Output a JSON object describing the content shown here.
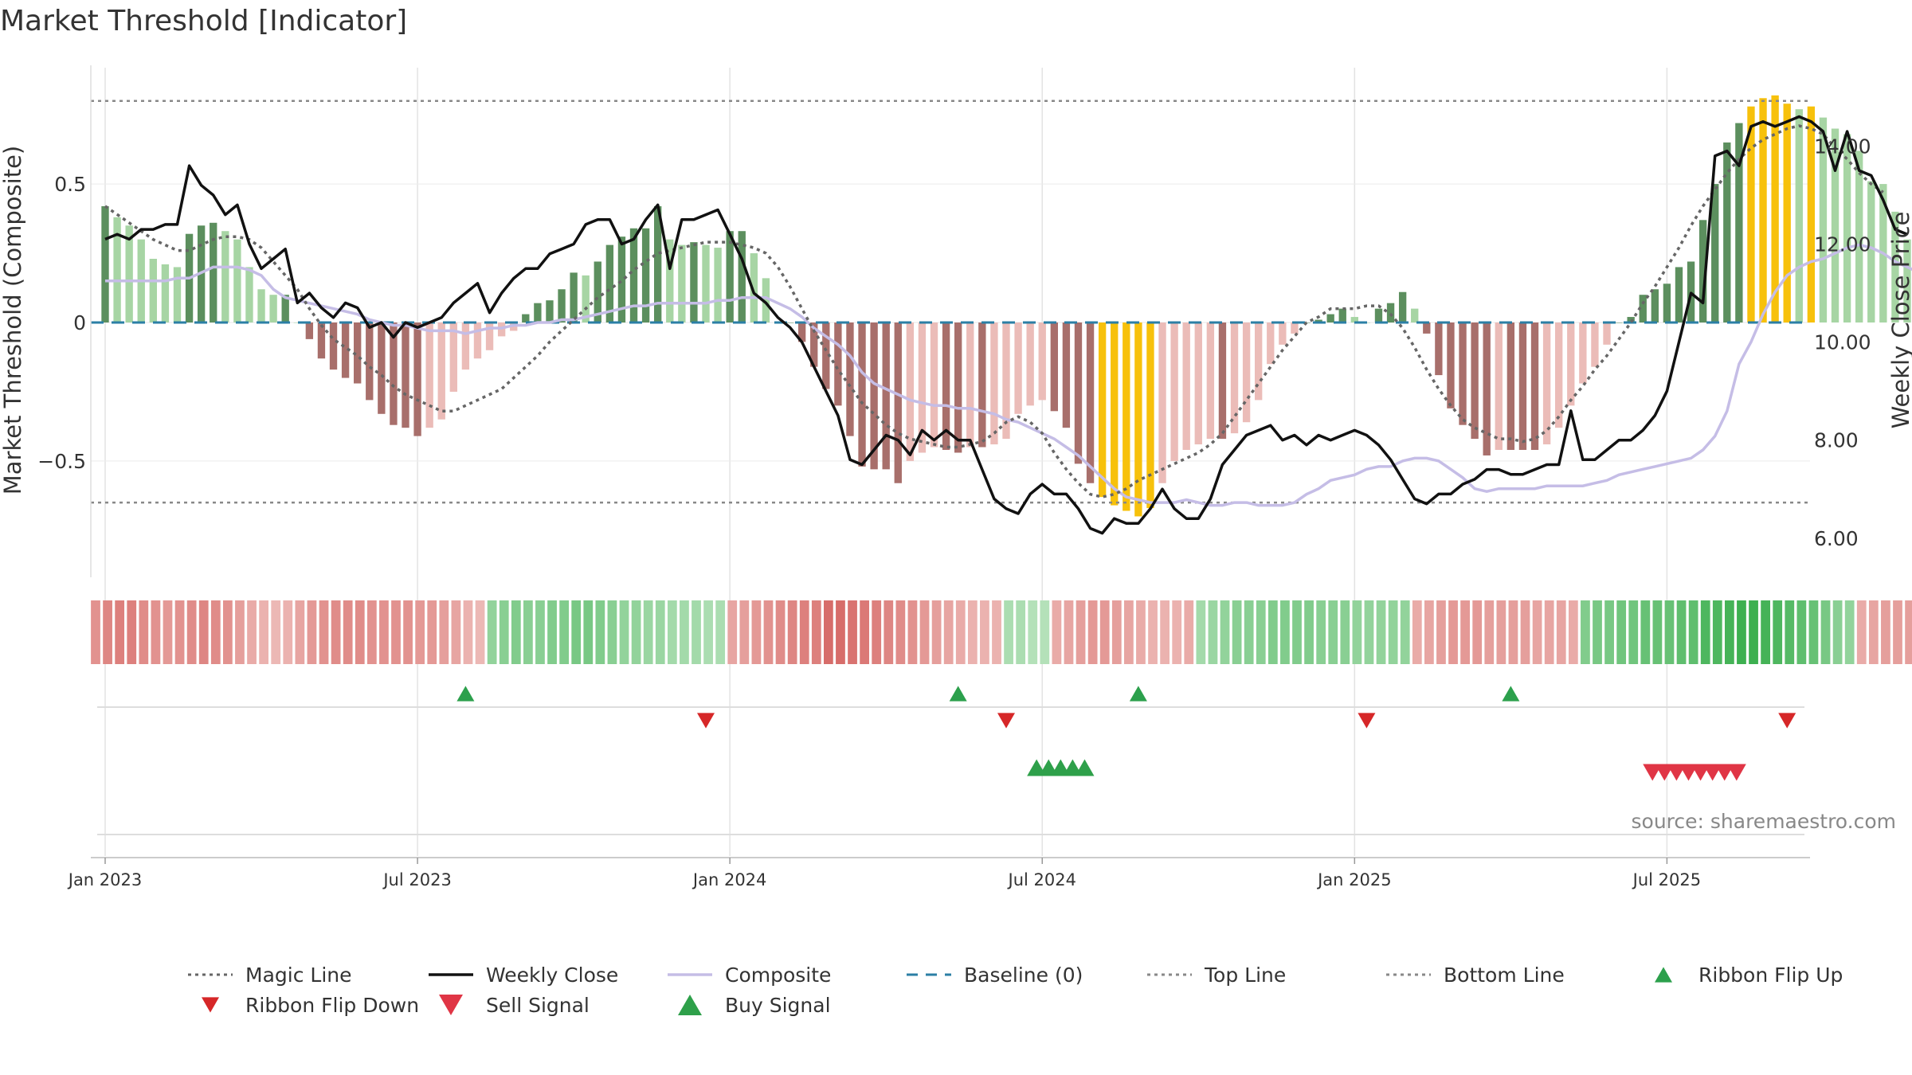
{
  "chart_data": [
    {
      "type": "bar+line",
      "panel": "main",
      "title": "Market Threshold [Indicator]",
      "ylabel": "Market Threshold (Composite)",
      "y2label": "Weekly Close Price",
      "ylim": [
        -0.92,
        0.92
      ],
      "y2lim": [
        5.2,
        15.6
      ],
      "yticks": [
        "0.5",
        "0",
        "−0.5"
      ],
      "ytick_values": [
        0.5,
        0,
        -0.5
      ],
      "y2ticks": [
        "14.00",
        "12.00",
        "10.00",
        "8.00",
        "6.00"
      ],
      "y2tick_values": [
        14,
        12,
        10,
        8,
        6
      ],
      "xticks": [
        "Jan 2023",
        "Jul 2023",
        "Jan 2024",
        "Jul 2024",
        "Jan 2025",
        "Jul 2025"
      ],
      "xtick_weeks": [
        0,
        26,
        52,
        78,
        104,
        130
      ],
      "x_unit": "weeks since Jan 2023",
      "top_line": 0.8,
      "bottom_line": -0.65,
      "baseline": 0,
      "composite_bars": [
        0.42,
        0.38,
        0.35,
        0.3,
        0.23,
        0.21,
        0.2,
        0.32,
        0.35,
        0.36,
        0.33,
        0.3,
        0.2,
        0.12,
        0.1,
        0.1,
        0.0,
        -0.06,
        -0.13,
        -0.17,
        -0.2,
        -0.22,
        -0.28,
        -0.33,
        -0.37,
        -0.38,
        -0.41,
        -0.38,
        -0.35,
        -0.25,
        -0.17,
        -0.13,
        -0.1,
        -0.05,
        -0.03,
        0.03,
        0.07,
        0.08,
        0.12,
        0.18,
        0.17,
        0.22,
        0.28,
        0.31,
        0.34,
        0.34,
        0.42,
        0.3,
        0.28,
        0.29,
        0.28,
        0.27,
        0.33,
        0.33,
        0.25,
        0.16,
        0.0,
        0.0,
        -0.07,
        -0.16,
        -0.24,
        -0.3,
        -0.41,
        -0.52,
        -0.53,
        -0.53,
        -0.58,
        -0.5,
        -0.47,
        -0.45,
        -0.46,
        -0.47,
        -0.45,
        -0.45,
        -0.44,
        -0.42,
        -0.33,
        -0.3,
        -0.28,
        -0.32,
        -0.38,
        -0.51,
        -0.58,
        -0.63,
        -0.66,
        -0.68,
        -0.7,
        -0.67,
        -0.58,
        -0.5,
        -0.46,
        -0.44,
        -0.42,
        -0.42,
        -0.4,
        -0.36,
        -0.28,
        -0.15,
        -0.08,
        -0.04,
        0.0,
        0.01,
        0.03,
        0.05,
        0.02,
        0.0,
        0.05,
        0.07,
        0.11,
        0.05,
        -0.04,
        -0.19,
        -0.31,
        -0.37,
        -0.42,
        -0.48,
        -0.46,
        -0.46,
        -0.46,
        -0.46,
        -0.44,
        -0.38,
        -0.3,
        -0.22,
        -0.16,
        -0.08,
        0.0,
        0.02,
        0.1,
        0.12,
        0.14,
        0.2,
        0.22,
        0.37,
        0.5,
        0.65,
        0.72,
        0.78,
        0.81,
        0.82,
        0.79,
        0.77,
        0.78,
        0.74,
        0.7,
        0.68,
        0.62,
        0.51,
        0.5,
        0.4,
        0.3,
        0.2
      ],
      "weekly_close": [
        12.1,
        12.2,
        12.1,
        12.3,
        12.3,
        12.4,
        12.4,
        13.6,
        13.2,
        13.0,
        12.6,
        12.8,
        12.0,
        11.5,
        11.7,
        11.9,
        10.8,
        11.0,
        10.7,
        10.5,
        10.8,
        10.7,
        10.3,
        10.4,
        10.1,
        10.4,
        10.3,
        10.4,
        10.5,
        10.8,
        11.0,
        11.2,
        10.6,
        11.0,
        11.3,
        11.5,
        11.5,
        11.8,
        11.9,
        12.0,
        12.4,
        12.5,
        12.5,
        12.0,
        12.1,
        12.5,
        12.8,
        11.5,
        12.5,
        12.5,
        12.6,
        12.7,
        12.2,
        11.7,
        11.0,
        10.8,
        10.5,
        10.3,
        10.0,
        9.5,
        9.0,
        8.5,
        7.6,
        7.5,
        7.8,
        8.1,
        8.0,
        7.7,
        8.2,
        8.0,
        8.2,
        8.0,
        8.0,
        7.4,
        6.8,
        6.6,
        6.5,
        6.9,
        7.1,
        6.9,
        6.9,
        6.6,
        6.2,
        6.1,
        6.4,
        6.3,
        6.3,
        6.6,
        7.0,
        6.6,
        6.4,
        6.4,
        6.8,
        7.5,
        7.8,
        8.1,
        8.2,
        8.3,
        8.0,
        8.1,
        7.9,
        8.1,
        8.0,
        8.1,
        8.2,
        8.1,
        7.9,
        7.6,
        7.2,
        6.8,
        6.7,
        6.9,
        6.9,
        7.1,
        7.2,
        7.4,
        7.4,
        7.3,
        7.3,
        7.4,
        7.5,
        7.5,
        8.6,
        7.6,
        7.6,
        7.8,
        8.0,
        8.0,
        8.2,
        8.5,
        9.0,
        10.0,
        11.0,
        10.8,
        13.8,
        13.9,
        13.6,
        14.4,
        14.5,
        14.4,
        14.5,
        14.6,
        14.5,
        14.3,
        13.5,
        14.3,
        13.5,
        13.4,
        12.9,
        12.3,
        12.2
      ],
      "composite_line": [
        0.15,
        0.15,
        0.15,
        0.15,
        0.15,
        0.15,
        0.16,
        0.16,
        0.18,
        0.2,
        0.2,
        0.2,
        0.19,
        0.17,
        0.12,
        0.09,
        0.08,
        0.07,
        0.06,
        0.05,
        0.04,
        0.03,
        0.01,
        0.0,
        -0.01,
        -0.01,
        -0.02,
        -0.03,
        -0.03,
        -0.03,
        -0.04,
        -0.03,
        -0.02,
        -0.02,
        -0.01,
        -0.01,
        0.0,
        0.0,
        0.01,
        0.01,
        0.02,
        0.03,
        0.04,
        0.05,
        0.06,
        0.06,
        0.07,
        0.07,
        0.07,
        0.07,
        0.07,
        0.08,
        0.08,
        0.09,
        0.09,
        0.09,
        0.07,
        0.05,
        0.02,
        -0.02,
        -0.05,
        -0.08,
        -0.12,
        -0.18,
        -0.22,
        -0.24,
        -0.26,
        -0.28,
        -0.29,
        -0.3,
        -0.3,
        -0.31,
        -0.31,
        -0.32,
        -0.33,
        -0.35,
        -0.36,
        -0.38,
        -0.4,
        -0.42,
        -0.45,
        -0.48,
        -0.52,
        -0.56,
        -0.6,
        -0.63,
        -0.64,
        -0.65,
        -0.65,
        -0.65,
        -0.64,
        -0.65,
        -0.66,
        -0.66,
        -0.65,
        -0.65,
        -0.66,
        -0.66,
        -0.66,
        -0.65,
        -0.62,
        -0.6,
        -0.57,
        -0.56,
        -0.55,
        -0.53,
        -0.52,
        -0.52,
        -0.5,
        -0.49,
        -0.49,
        -0.5,
        -0.53,
        -0.56,
        -0.6,
        -0.61,
        -0.6,
        -0.6,
        -0.6,
        -0.6,
        -0.59,
        -0.59,
        -0.59,
        -0.59,
        -0.58,
        -0.57,
        -0.55,
        -0.54,
        -0.53,
        -0.52,
        -0.51,
        -0.5,
        -0.49,
        -0.46,
        -0.41,
        -0.32,
        -0.15,
        -0.07,
        0.03,
        0.11,
        0.17,
        0.2,
        0.22,
        0.23,
        0.25,
        0.27,
        0.28,
        0.27,
        0.25,
        0.22,
        0.2,
        0.18,
        0.15
      ],
      "magic_line": [
        0.42,
        0.39,
        0.36,
        0.33,
        0.3,
        0.28,
        0.26,
        0.26,
        0.28,
        0.3,
        0.31,
        0.31,
        0.3,
        0.27,
        0.22,
        0.17,
        0.12,
        0.05,
        -0.01,
        -0.06,
        -0.09,
        -0.12,
        -0.16,
        -0.19,
        -0.23,
        -0.26,
        -0.28,
        -0.3,
        -0.32,
        -0.32,
        -0.3,
        -0.28,
        -0.26,
        -0.24,
        -0.2,
        -0.16,
        -0.12,
        -0.07,
        -0.03,
        0.01,
        0.05,
        0.09,
        0.12,
        0.15,
        0.19,
        0.22,
        0.25,
        0.26,
        0.27,
        0.28,
        0.29,
        0.29,
        0.29,
        0.28,
        0.27,
        0.25,
        0.2,
        0.13,
        0.05,
        -0.03,
        -0.1,
        -0.17,
        -0.23,
        -0.29,
        -0.33,
        -0.37,
        -0.4,
        -0.42,
        -0.43,
        -0.44,
        -0.45,
        -0.45,
        -0.44,
        -0.43,
        -0.4,
        -0.36,
        -0.34,
        -0.36,
        -0.4,
        -0.47,
        -0.53,
        -0.58,
        -0.62,
        -0.63,
        -0.62,
        -0.6,
        -0.57,
        -0.55,
        -0.53,
        -0.51,
        -0.49,
        -0.47,
        -0.44,
        -0.4,
        -0.34,
        -0.28,
        -0.22,
        -0.16,
        -0.1,
        -0.05,
        0.0,
        0.02,
        0.05,
        0.05,
        0.05,
        0.06,
        0.06,
        0.03,
        -0.02,
        -0.09,
        -0.17,
        -0.24,
        -0.3,
        -0.35,
        -0.38,
        -0.4,
        -0.42,
        -0.42,
        -0.43,
        -0.42,
        -0.39,
        -0.34,
        -0.28,
        -0.23,
        -0.17,
        -0.12,
        -0.06,
        0.0,
        0.07,
        0.13,
        0.2,
        0.27,
        0.35,
        0.42,
        0.48,
        0.54,
        0.59,
        0.63,
        0.66,
        0.68,
        0.7,
        0.71,
        0.7,
        0.68,
        0.63,
        0.59,
        0.54,
        0.5,
        0.47
      ]
    },
    {
      "type": "heatmap",
      "panel": "ribbon",
      "values": [
        -0.55,
        -0.65,
        -0.7,
        -0.7,
        -0.6,
        -0.55,
        -0.5,
        -0.55,
        -0.6,
        -0.65,
        -0.6,
        -0.55,
        -0.45,
        -0.35,
        -0.3,
        -0.25,
        -0.3,
        -0.4,
        -0.5,
        -0.55,
        -0.6,
        -0.6,
        -0.6,
        -0.55,
        -0.55,
        -0.55,
        -0.55,
        -0.5,
        -0.5,
        -0.45,
        -0.4,
        -0.3,
        -0.25,
        0.45,
        0.5,
        0.55,
        0.5,
        0.5,
        0.55,
        0.55,
        0.6,
        0.6,
        0.55,
        0.5,
        0.45,
        0.45,
        0.4,
        0.4,
        0.35,
        0.35,
        0.35,
        0.3,
        0.3,
        -0.4,
        -0.45,
        -0.5,
        -0.55,
        -0.6,
        -0.65,
        -0.7,
        -0.7,
        -0.85,
        -0.85,
        -0.8,
        -0.75,
        -0.7,
        -0.65,
        -0.6,
        -0.55,
        -0.5,
        -0.45,
        -0.4,
        -0.35,
        -0.3,
        -0.3,
        -0.3,
        0.3,
        0.3,
        0.25,
        0.25,
        -0.35,
        -0.4,
        -0.45,
        -0.5,
        -0.5,
        -0.45,
        -0.4,
        -0.35,
        -0.3,
        -0.3,
        -0.3,
        -0.35,
        0.35,
        0.4,
        0.45,
        0.5,
        0.5,
        0.5,
        0.55,
        0.55,
        0.55,
        0.55,
        0.5,
        0.5,
        0.5,
        0.45,
        0.45,
        0.45,
        0.45,
        0.45,
        -0.35,
        -0.4,
        -0.45,
        -0.5,
        -0.5,
        -0.5,
        -0.45,
        -0.45,
        -0.45,
        -0.45,
        -0.4,
        -0.4,
        -0.4,
        -0.35,
        0.55,
        0.6,
        0.6,
        0.65,
        0.65,
        0.7,
        0.7,
        0.7,
        0.75,
        0.75,
        0.85,
        0.85,
        0.9,
        0.95,
        0.95,
        0.9,
        0.85,
        0.8,
        0.75,
        0.7,
        0.6,
        0.5,
        0.45,
        -0.35,
        -0.4,
        -0.45,
        -0.45,
        -0.45
      ]
    },
    {
      "type": "scatter",
      "panel": "signals",
      "ribbon_flip_up_weeks": [
        30,
        71,
        86,
        117
      ],
      "ribbon_flip_down_weeks": [
        50,
        75,
        105,
        140
      ],
      "buy_signal_weeks": [
        77,
        78,
        79,
        80,
        81
      ],
      "sell_signal_weeks": [
        128,
        129,
        130,
        131,
        132,
        133,
        134,
        135
      ]
    }
  ],
  "legend": [
    {
      "label": "Magic Line",
      "style": "dotted",
      "color": "#666666"
    },
    {
      "label": "Weekly Close",
      "style": "solid",
      "color": "#111111"
    },
    {
      "label": "Composite",
      "style": "solid",
      "color": "#c5bde6"
    },
    {
      "label": "Baseline (0)",
      "style": "dashed",
      "color": "#2b7fa5"
    },
    {
      "label": "Top Line",
      "style": "dotted",
      "color": "#888888"
    },
    {
      "label": "Bottom Line",
      "style": "dotted",
      "color": "#888888"
    },
    {
      "label": "Ribbon Flip Up",
      "style": "triangle-up",
      "color": "#2ca04c"
    },
    {
      "label": "Ribbon Flip Down",
      "style": "triangle-down",
      "color": "#d62728"
    },
    {
      "label": "Sell Signal",
      "style": "triangle-down",
      "color": "#e03545"
    },
    {
      "label": "Buy Signal",
      "style": "triangle-up",
      "color": "#2ea04a"
    }
  ],
  "source": "source: sharemaestro.com",
  "colors": {
    "bar_pos_strong": "#5c8f5e",
    "bar_pos_weak": "#a7d5a4",
    "bar_neg_strong": "#a86f6b",
    "bar_neg_weak": "#ebbcb8",
    "bar_extreme": "#f7c10b",
    "magic": "#666666",
    "close": "#111111",
    "composite": "#c5bde6",
    "baseline": "#2b7fa5",
    "threshold": "#888888",
    "flip_up": "#2ca04c",
    "flip_down": "#d62728",
    "sell": "#e03545",
    "buy": "#2ea04a",
    "grid": "#e3e3e3"
  }
}
